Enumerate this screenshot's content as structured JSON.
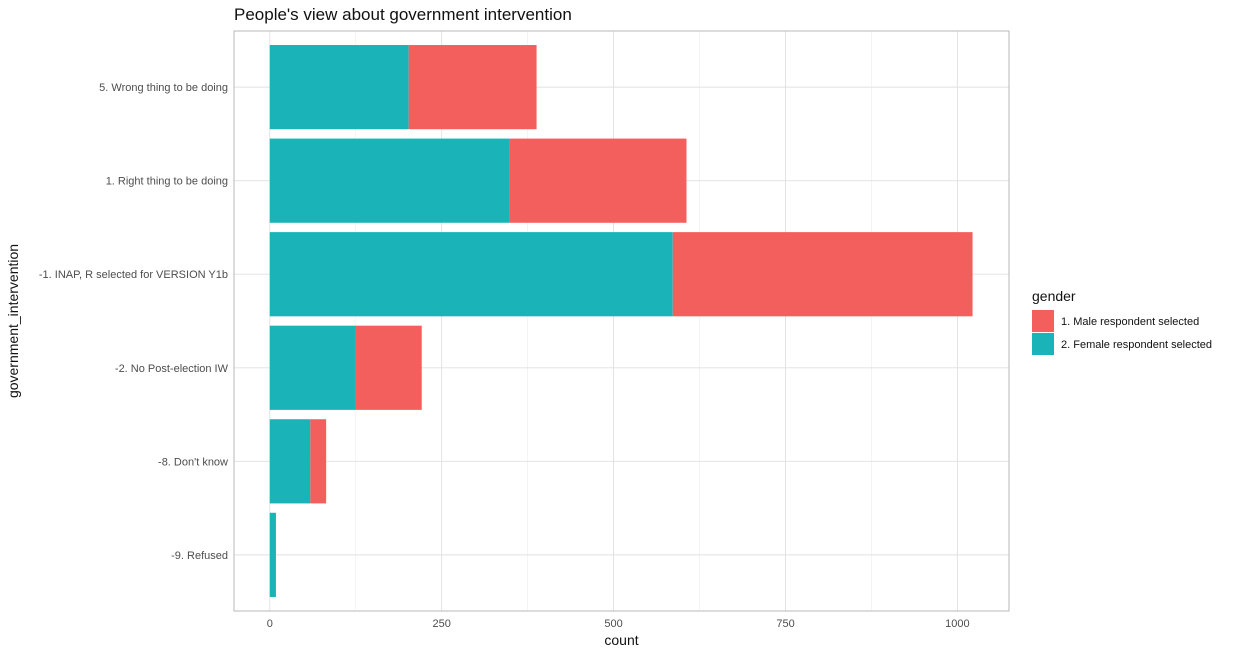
{
  "chart_data": {
    "type": "bar",
    "orientation": "horizontal",
    "stacked": true,
    "title": "People's view about government intervention",
    "xlabel": "count",
    "ylabel": "government_intervention",
    "xlim": [
      -52,
      1075
    ],
    "x_ticks": [
      0,
      250,
      500,
      750,
      1000
    ],
    "x_tick_labels": [
      "0",
      "250",
      "500",
      "750",
      "1000"
    ],
    "x_minor_ticks": [
      125,
      375,
      625,
      875
    ],
    "grid": true,
    "categories": [
      "5. Wrong thing to be doing",
      "1. Right thing to be doing",
      "-1. INAP, R selected for VERSION Y1b",
      "-2. No Post-election IW",
      "-8. Don't know",
      "-9. Refused"
    ],
    "series": [
      {
        "name": "2. Female respondent selected",
        "color": "#1AB3B8",
        "values": [
          202,
          348,
          586,
          124,
          59,
          9
        ]
      },
      {
        "name": "1. Male respondent selected",
        "color": "#F25F5C",
        "values": [
          186,
          258,
          436,
          97,
          23,
          0
        ]
      }
    ],
    "legend": {
      "title": "gender",
      "position": "right",
      "entries": [
        {
          "label": "1. Male respondent selected",
          "color": "#F25F5C"
        },
        {
          "label": "2. Female respondent selected",
          "color": "#1AB3B8"
        }
      ]
    }
  }
}
